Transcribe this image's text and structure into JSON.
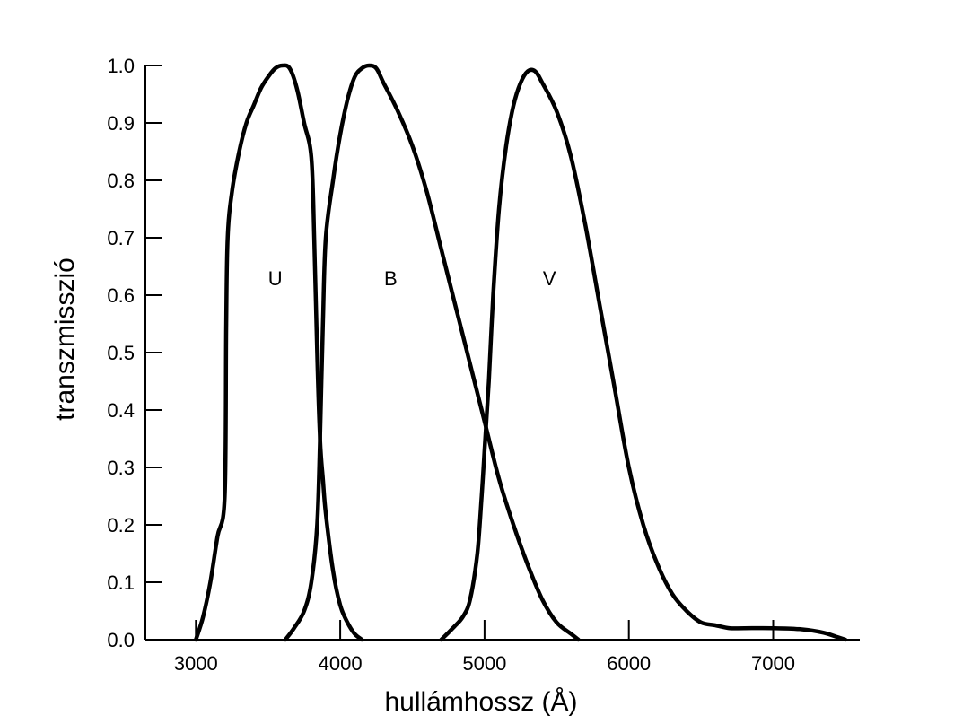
{
  "chart_data": {
    "type": "line",
    "xlabel": "hullámhossz (Å)",
    "ylabel": "transzmisszió",
    "xlim": [
      2650,
      7600
    ],
    "ylim": [
      0.0,
      1.0
    ],
    "x_ticks": [
      3000,
      4000,
      5000,
      6000,
      7000
    ],
    "x_tick_labels": [
      "3000",
      "4000",
      "5000",
      "6000",
      "7000"
    ],
    "y_ticks": [
      0.0,
      0.1,
      0.2,
      0.3,
      0.4,
      0.5,
      0.6,
      0.7,
      0.8,
      0.9,
      1.0
    ],
    "y_tick_labels": [
      "0.0",
      "0.1",
      "0.2",
      "0.3",
      "0.4",
      "0.5",
      "0.6",
      "0.7",
      "0.8",
      "0.9",
      "1.0"
    ],
    "grid": false,
    "legend": "none",
    "series": [
      {
        "name": "U",
        "label_pos": [
          3550,
          0.63
        ],
        "points": [
          [
            3000,
            0.0
          ],
          [
            3050,
            0.04
          ],
          [
            3100,
            0.1
          ],
          [
            3150,
            0.18
          ],
          [
            3200,
            0.25
          ],
          [
            3210,
            0.55
          ],
          [
            3220,
            0.7
          ],
          [
            3250,
            0.78
          ],
          [
            3300,
            0.85
          ],
          [
            3350,
            0.9
          ],
          [
            3400,
            0.93
          ],
          [
            3450,
            0.96
          ],
          [
            3500,
            0.98
          ],
          [
            3550,
            0.995
          ],
          [
            3600,
            1.0
          ],
          [
            3650,
            0.995
          ],
          [
            3700,
            0.96
          ],
          [
            3750,
            0.9
          ],
          [
            3800,
            0.84
          ],
          [
            3820,
            0.7
          ],
          [
            3840,
            0.5
          ],
          [
            3860,
            0.35
          ],
          [
            3880,
            0.28
          ],
          [
            3900,
            0.22
          ],
          [
            3950,
            0.12
          ],
          [
            4000,
            0.06
          ],
          [
            4050,
            0.03
          ],
          [
            4100,
            0.01
          ],
          [
            4150,
            0.0
          ]
        ]
      },
      {
        "name": "B",
        "label_pos": [
          4350,
          0.63
        ],
        "points": [
          [
            3620,
            0.0
          ],
          [
            3680,
            0.02
          ],
          [
            3750,
            0.05
          ],
          [
            3800,
            0.1
          ],
          [
            3840,
            0.2
          ],
          [
            3860,
            0.35
          ],
          [
            3880,
            0.55
          ],
          [
            3900,
            0.7
          ],
          [
            3950,
            0.8
          ],
          [
            4000,
            0.88
          ],
          [
            4050,
            0.94
          ],
          [
            4100,
            0.98
          ],
          [
            4150,
            0.995
          ],
          [
            4200,
            1.0
          ],
          [
            4250,
            0.995
          ],
          [
            4300,
            0.97
          ],
          [
            4400,
            0.92
          ],
          [
            4500,
            0.86
          ],
          [
            4600,
            0.78
          ],
          [
            4700,
            0.68
          ],
          [
            4800,
            0.58
          ],
          [
            4900,
            0.48
          ],
          [
            5000,
            0.38
          ],
          [
            5100,
            0.28
          ],
          [
            5200,
            0.2
          ],
          [
            5300,
            0.13
          ],
          [
            5400,
            0.07
          ],
          [
            5500,
            0.03
          ],
          [
            5600,
            0.01
          ],
          [
            5650,
            0.0
          ]
        ]
      },
      {
        "name": "V",
        "label_pos": [
          5450,
          0.63
        ],
        "points": [
          [
            4700,
            0.0
          ],
          [
            4780,
            0.02
          ],
          [
            4850,
            0.04
          ],
          [
            4900,
            0.07
          ],
          [
            4950,
            0.15
          ],
          [
            4980,
            0.25
          ],
          [
            5000,
            0.33
          ],
          [
            5030,
            0.45
          ],
          [
            5060,
            0.6
          ],
          [
            5100,
            0.75
          ],
          [
            5150,
            0.86
          ],
          [
            5200,
            0.93
          ],
          [
            5250,
            0.97
          ],
          [
            5300,
            0.99
          ],
          [
            5350,
            0.99
          ],
          [
            5400,
            0.97
          ],
          [
            5500,
            0.92
          ],
          [
            5600,
            0.84
          ],
          [
            5700,
            0.72
          ],
          [
            5800,
            0.58
          ],
          [
            5900,
            0.44
          ],
          [
            6000,
            0.3
          ],
          [
            6100,
            0.2
          ],
          [
            6200,
            0.13
          ],
          [
            6300,
            0.08
          ],
          [
            6400,
            0.05
          ],
          [
            6500,
            0.03
          ],
          [
            6600,
            0.025
          ],
          [
            6700,
            0.02
          ],
          [
            6800,
            0.02
          ],
          [
            7000,
            0.02
          ],
          [
            7200,
            0.018
          ],
          [
            7350,
            0.012
          ],
          [
            7450,
            0.004
          ],
          [
            7500,
            0.0
          ]
        ]
      }
    ]
  }
}
